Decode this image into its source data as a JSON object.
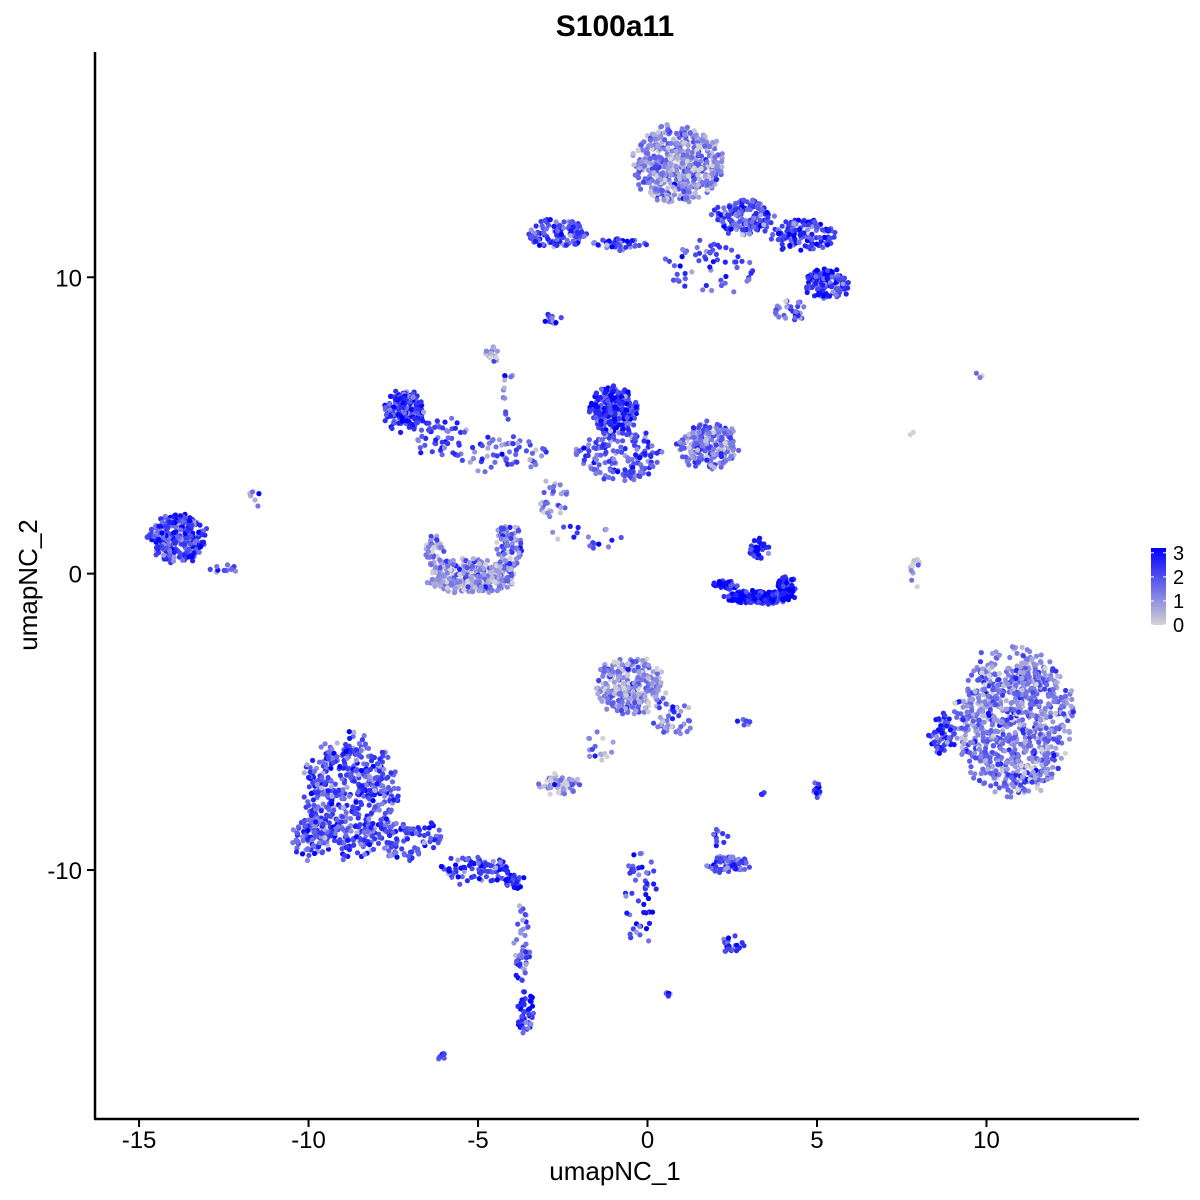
{
  "chart_data": {
    "type": "scatter",
    "title": "S100a11",
    "xlabel": "umapNC_1",
    "ylabel": "umapNC_2",
    "xlim": [
      -16.3,
      14.5
    ],
    "ylim": [
      -18.4,
      17.6
    ],
    "x_ticks": [
      -15,
      -10,
      -5,
      0,
      5,
      10
    ],
    "x_tick_labels": [
      "-15",
      "-10",
      "-5",
      "0",
      "5",
      "10"
    ],
    "y_ticks": [
      -10,
      0,
      10
    ],
    "y_tick_labels": [
      "-10",
      "0",
      "10"
    ],
    "grid": false,
    "color_scale": {
      "low_color": "#d3d3d3",
      "high_color": "#0000ff",
      "min": 0,
      "max": 3.2,
      "legend_ticks": [
        0,
        1,
        2,
        3
      ],
      "legend_tick_labels": [
        "0",
        "1",
        "2",
        "3"
      ],
      "legend_position": "right"
    },
    "clusters": [
      {
        "cx": 0.9,
        "cy": 13.8,
        "rx": 1.3,
        "ry": 1.3,
        "n": 520,
        "expr": 1.1
      },
      {
        "cx": 2.8,
        "cy": 12.0,
        "rx": 0.9,
        "ry": 0.6,
        "n": 150,
        "expr": 2.0
      },
      {
        "cx": 4.6,
        "cy": 11.4,
        "rx": 0.9,
        "ry": 0.6,
        "n": 120,
        "expr": 2.3
      },
      {
        "cx": 5.3,
        "cy": 9.8,
        "rx": 0.7,
        "ry": 0.5,
        "n": 130,
        "expr": 2.4
      },
      {
        "cx": 4.2,
        "cy": 8.9,
        "rx": 0.5,
        "ry": 0.4,
        "n": 30,
        "expr": 1.6
      },
      {
        "cx": -2.7,
        "cy": 11.5,
        "rx": 0.9,
        "ry": 0.5,
        "n": 120,
        "expr": 2.0
      },
      {
        "cx": -0.8,
        "cy": 11.1,
        "rx": 0.9,
        "ry": 0.2,
        "n": 40,
        "expr": 1.9
      },
      {
        "cx": 1.9,
        "cy": 10.3,
        "rx": 1.4,
        "ry": 0.9,
        "n": 60,
        "expr": 2.0
      },
      {
        "cx": -2.8,
        "cy": 8.6,
        "rx": 0.3,
        "ry": 0.2,
        "n": 14,
        "expr": 2.3
      },
      {
        "cx": -7.2,
        "cy": 5.5,
        "rx": 0.6,
        "ry": 0.7,
        "n": 160,
        "expr": 2.4
      },
      {
        "cx": -6.1,
        "cy": 4.6,
        "rx": 1.0,
        "ry": 0.7,
        "n": 50,
        "expr": 2.2
      },
      {
        "cx": -4.3,
        "cy": 4.0,
        "rx": 1.4,
        "ry": 0.6,
        "n": 60,
        "expr": 1.8
      },
      {
        "cx": -4.6,
        "cy": 7.4,
        "rx": 0.2,
        "ry": 0.3,
        "n": 15,
        "expr": 1.0
      },
      {
        "cx": -4.1,
        "cy": 6.0,
        "rx": 0.2,
        "ry": 1.0,
        "n": 12,
        "expr": 1.6
      },
      {
        "cx": -1.0,
        "cy": 5.5,
        "rx": 0.7,
        "ry": 0.8,
        "n": 240,
        "expr": 2.5
      },
      {
        "cx": -0.8,
        "cy": 4.0,
        "rx": 1.3,
        "ry": 0.9,
        "n": 160,
        "expr": 1.8
      },
      {
        "cx": 1.8,
        "cy": 4.3,
        "rx": 0.9,
        "ry": 0.8,
        "n": 220,
        "expr": 1.4
      },
      {
        "cx": -2.8,
        "cy": 2.6,
        "rx": 0.5,
        "ry": 0.7,
        "n": 30,
        "expr": 1.2
      },
      {
        "cx": -1.8,
        "cy": 1.2,
        "rx": 1.2,
        "ry": 0.5,
        "n": 18,
        "expr": 1.8
      },
      {
        "cx": -13.9,
        "cy": 1.2,
        "rx": 0.9,
        "ry": 0.8,
        "n": 280,
        "expr": 2.3
      },
      {
        "cx": -12.5,
        "cy": 0.1,
        "rx": 0.4,
        "ry": 0.2,
        "n": 12,
        "expr": 1.6
      },
      {
        "cx": -11.6,
        "cy": 2.5,
        "rx": 0.2,
        "ry": 0.3,
        "n": 6,
        "expr": 1.4
      },
      {
        "cx": -5.2,
        "cy": -0.1,
        "rx": 1.3,
        "ry": 0.6,
        "n": 280,
        "expr": 0.9
      },
      {
        "cx": -4.1,
        "cy": 0.9,
        "rx": 0.4,
        "ry": 0.8,
        "n": 80,
        "expr": 1.4
      },
      {
        "cx": -6.3,
        "cy": 0.6,
        "rx": 0.3,
        "ry": 0.7,
        "n": 40,
        "expr": 1.0
      },
      {
        "cx": 3.3,
        "cy": -0.8,
        "rx": 1.0,
        "ry": 0.22,
        "n": 230,
        "expr": 3.1
      },
      {
        "cx": 4.1,
        "cy": -0.4,
        "rx": 0.3,
        "ry": 0.3,
        "n": 40,
        "expr": 2.9
      },
      {
        "cx": 2.3,
        "cy": -0.4,
        "rx": 0.4,
        "ry": 0.15,
        "n": 30,
        "expr": 2.9
      },
      {
        "cx": 3.3,
        "cy": 0.8,
        "rx": 0.3,
        "ry": 0.4,
        "n": 35,
        "expr": 2.6
      },
      {
        "cx": 7.9,
        "cy": 0.0,
        "rx": 0.15,
        "ry": 0.6,
        "n": 12,
        "expr": 0.5
      },
      {
        "cx": 10.8,
        "cy": -5.0,
        "rx": 1.7,
        "ry": 2.5,
        "n": 900,
        "expr": 1.3
      },
      {
        "cx": 8.7,
        "cy": -5.4,
        "rx": 0.4,
        "ry": 0.7,
        "n": 60,
        "expr": 2.4
      },
      {
        "cx": -0.5,
        "cy": -3.8,
        "rx": 1.0,
        "ry": 1.0,
        "n": 280,
        "expr": 1.0
      },
      {
        "cx": 0.8,
        "cy": -4.9,
        "rx": 0.6,
        "ry": 0.6,
        "n": 40,
        "expr": 1.4
      },
      {
        "cx": -1.4,
        "cy": -5.9,
        "rx": 0.5,
        "ry": 0.6,
        "n": 16,
        "expr": 1.1
      },
      {
        "cx": -2.6,
        "cy": -7.1,
        "rx": 0.6,
        "ry": 0.35,
        "n": 50,
        "expr": 0.8
      },
      {
        "cx": -8.8,
        "cy": -7.5,
        "rx": 1.4,
        "ry": 2.0,
        "n": 500,
        "expr": 2.0
      },
      {
        "cx": -9.9,
        "cy": -8.9,
        "rx": 0.6,
        "ry": 0.8,
        "n": 90,
        "expr": 2.0
      },
      {
        "cx": -7.0,
        "cy": -9.0,
        "rx": 1.0,
        "ry": 0.7,
        "n": 90,
        "expr": 2.0
      },
      {
        "cx": -5.1,
        "cy": -10.0,
        "rx": 1.1,
        "ry": 0.5,
        "n": 90,
        "expr": 2.1
      },
      {
        "cx": -3.9,
        "cy": -10.4,
        "rx": 0.3,
        "ry": 0.3,
        "n": 25,
        "expr": 2.5
      },
      {
        "cx": -3.7,
        "cy": -12.5,
        "rx": 0.25,
        "ry": 1.3,
        "n": 45,
        "expr": 1.6
      },
      {
        "cx": -3.6,
        "cy": -14.8,
        "rx": 0.3,
        "ry": 0.7,
        "n": 45,
        "expr": 2.5
      },
      {
        "cx": -6.1,
        "cy": -16.3,
        "rx": 0.15,
        "ry": 0.15,
        "n": 8,
        "expr": 2.3
      },
      {
        "cx": -0.2,
        "cy": -10.9,
        "rx": 0.5,
        "ry": 1.6,
        "n": 50,
        "expr": 2.3
      },
      {
        "cx": 2.4,
        "cy": -9.8,
        "rx": 0.7,
        "ry": 0.3,
        "n": 70,
        "expr": 1.9
      },
      {
        "cx": 2.1,
        "cy": -8.9,
        "rx": 0.3,
        "ry": 0.3,
        "n": 10,
        "expr": 2.0
      },
      {
        "cx": 2.5,
        "cy": -12.5,
        "rx": 0.4,
        "ry": 0.3,
        "n": 20,
        "expr": 2.3
      },
      {
        "cx": 0.6,
        "cy": -14.2,
        "rx": 0.1,
        "ry": 0.1,
        "n": 5,
        "expr": 2.2
      },
      {
        "cx": 5.0,
        "cy": -7.3,
        "rx": 0.1,
        "ry": 0.3,
        "n": 10,
        "expr": 2.8
      },
      {
        "cx": 3.4,
        "cy": -7.5,
        "rx": 0.05,
        "ry": 0.2,
        "n": 4,
        "expr": 2.6
      },
      {
        "cx": 2.9,
        "cy": -5.0,
        "rx": 0.3,
        "ry": 0.1,
        "n": 6,
        "expr": 2.0
      },
      {
        "cx": 9.7,
        "cy": 6.7,
        "rx": 0.2,
        "ry": 0.1,
        "n": 3,
        "expr": 0.8
      },
      {
        "cx": 7.8,
        "cy": 4.6,
        "rx": 0.1,
        "ry": 0.3,
        "n": 2,
        "expr": 0.4
      }
    ]
  }
}
